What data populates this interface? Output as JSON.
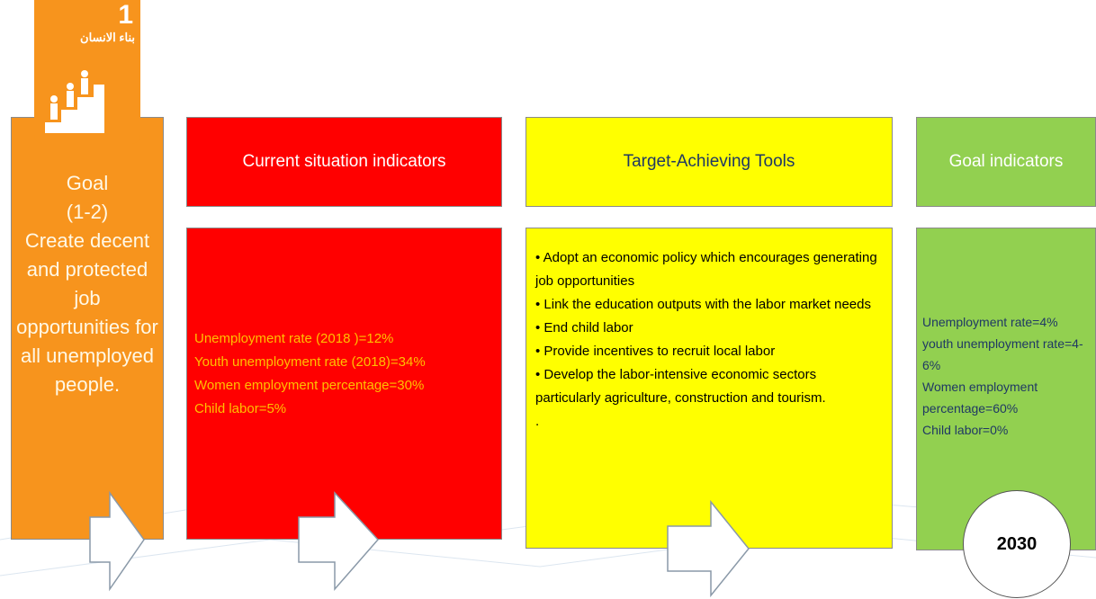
{
  "goal": {
    "number": "1",
    "arabic_title": "بناء الانسان",
    "label": "Goal",
    "code": "(1-2)",
    "text": "Create decent and protected job opportunities for all unemployed people."
  },
  "current": {
    "header": "Current situation indicators",
    "items": [
      "Unemployment rate (2018 )=12%",
      "Youth unemployment rate (2018)=34%",
      "Women employment percentage=30%",
      "Child labor=5%"
    ]
  },
  "tools": {
    "header": "Target-Achieving Tools",
    "items": [
      "• Adopt an economic policy which encourages generating job opportunities",
      "• Link the education outputs with the labor market needs",
      "• End child labor",
      "• Provide incentives to recruit local labor",
      "• Develop the labor-intensive economic sectors particularly agriculture, construction and tourism."
    ],
    "note": "."
  },
  "targets": {
    "header": "Goal indicators",
    "items": [
      "Unemployment rate=4%",
      "youth unemployment rate=4-6%",
      "Women employment percentage=60%",
      "Child labor=0%"
    ],
    "year": "2030"
  }
}
